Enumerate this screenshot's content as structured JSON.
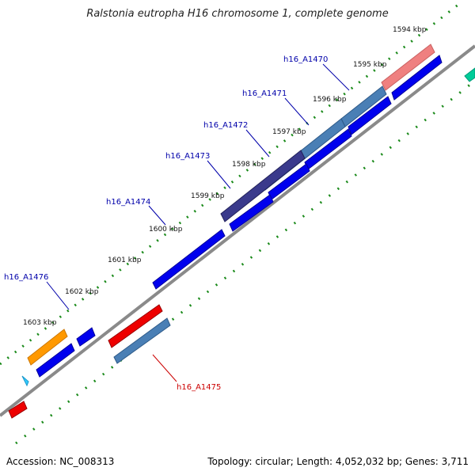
{
  "title": "Ralstonia eutropha H16 chromosome 1, complete genome",
  "footer": {
    "accession": "Accession: NC_008313",
    "topology": "Topology: circular; Length: 4,052,032 bp; Genes: 3,711"
  },
  "colors": {
    "backbone": "#8a8a8a",
    "tick": "#1a8a1a",
    "label_forward": "#0000aa",
    "label_reverse": "#cc0000",
    "gene_blue": "#0000ee",
    "gene_red": "#ee0000",
    "gene_steel": "#4a7fb5",
    "gene_navy": "#3a3a8c",
    "gene_pink": "#ef8080",
    "gene_orange": "#ff9900",
    "gene_teal": "#00cc99",
    "gene_cyan": "#33ccff"
  },
  "scale_labels": [
    "1594 kbp",
    "1595 kbp",
    "1596 kbp",
    "1597 kbp",
    "1598 kbp",
    "1599 kbp",
    "1600 kbp",
    "1601 kbp",
    "1602 kbp",
    "1603 kbp"
  ],
  "gene_labels": [
    {
      "text": "h16_A1470",
      "strand": "forward"
    },
    {
      "text": "h16_A1471",
      "strand": "forward"
    },
    {
      "text": "h16_A1472",
      "strand": "forward"
    },
    {
      "text": "h16_A1473",
      "strand": "forward"
    },
    {
      "text": "h16_A1474",
      "strand": "forward"
    },
    {
      "text": "h16_A1476",
      "strand": "forward"
    },
    {
      "text": "h16_A1475",
      "strand": "reverse"
    }
  ]
}
